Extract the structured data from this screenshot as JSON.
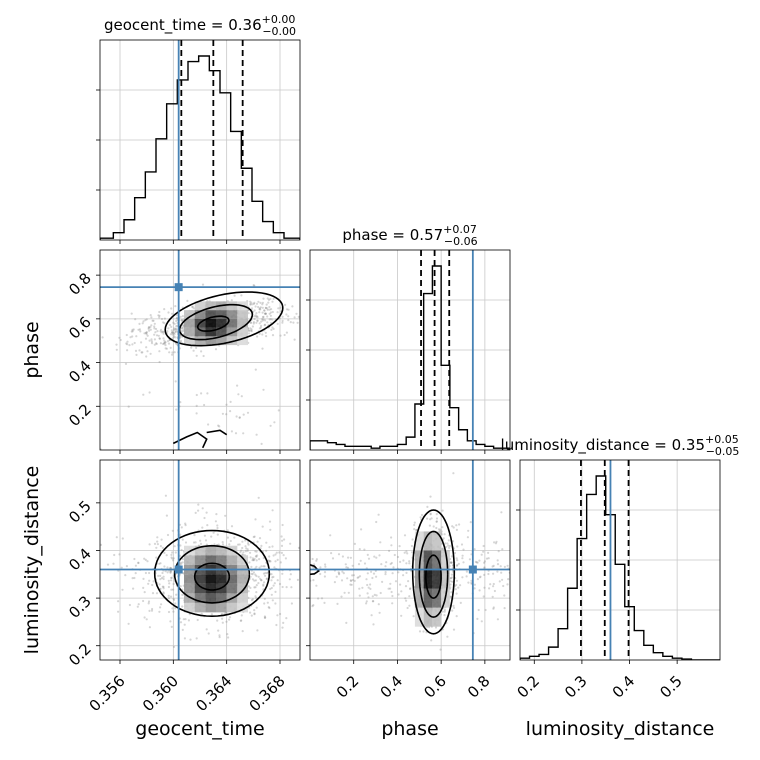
{
  "chart_data": {
    "type": "corner",
    "parameters": [
      "geocent_time",
      "phase",
      "luminosity_distance"
    ],
    "colors": {
      "truth": "#4682b4",
      "histogram": "#000000",
      "grid": "#c8c8c8",
      "scatter": "#8a8a8a",
      "density_dark": "#000000",
      "density_light": "#f2f2f2"
    },
    "truths": {
      "geocent_time": 0.3604,
      "phase": 0.745,
      "luminosity_distance": 0.36
    },
    "axes": {
      "geocent_time": {
        "label": "geocent_time",
        "range": [
          0.3545,
          0.3695
        ],
        "ticks": [
          0.356,
          0.36,
          0.364,
          0.368
        ],
        "tick_labels": [
          "0.356",
          "0.360",
          "0.364",
          "0.368"
        ]
      },
      "phase": {
        "label": "phase",
        "range": [
          0.0,
          0.915
        ],
        "ticks": [
          0.2,
          0.4,
          0.6,
          0.8
        ],
        "tick_labels": [
          "0.2",
          "0.4",
          "0.6",
          "0.8"
        ]
      },
      "luminosity_distance": {
        "label": "luminosity_distance",
        "range": [
          0.17,
          0.59
        ],
        "ticks": [
          0.2,
          0.3,
          0.4,
          0.5
        ],
        "tick_labels": [
          "0.2",
          "0.3",
          "0.4",
          "0.5"
        ]
      }
    },
    "marginals": [
      {
        "parameter": "geocent_time",
        "title_prefix": "geocent_time = 0.36",
        "title_sup": "+0.00",
        "title_sub": "−0.00",
        "quantiles": [
          0.3606,
          0.363,
          0.3652
        ],
        "bin_edges": [
          0.3545,
          0.3555,
          0.3563,
          0.3571,
          0.3579,
          0.3587,
          0.3595,
          0.3603,
          0.3611,
          0.3619,
          0.3627,
          0.3635,
          0.3643,
          0.3651,
          0.3659,
          0.3667,
          0.3675,
          0.3683,
          0.3695
        ],
        "counts": [
          0.01,
          0.04,
          0.11,
          0.23,
          0.37,
          0.55,
          0.74,
          0.87,
          0.97,
          1.0,
          0.92,
          0.8,
          0.59,
          0.39,
          0.21,
          0.1,
          0.04,
          0.01
        ]
      },
      {
        "parameter": "phase",
        "title_prefix": "phase = 0.57",
        "title_sup": "+0.07",
        "title_sub": "−0.06",
        "quantiles": [
          0.508,
          0.57,
          0.637
        ],
        "bin_edges": [
          0.0,
          0.04,
          0.08,
          0.12,
          0.16,
          0.2,
          0.24,
          0.28,
          0.32,
          0.36,
          0.4,
          0.44,
          0.48,
          0.52,
          0.56,
          0.6,
          0.64,
          0.68,
          0.72,
          0.76,
          0.8,
          0.84,
          0.88,
          0.915
        ],
        "counts": [
          0.05,
          0.05,
          0.04,
          0.03,
          0.02,
          0.02,
          0.02,
          0.01,
          0.02,
          0.02,
          0.03,
          0.07,
          0.25,
          0.85,
          1.0,
          0.46,
          0.23,
          0.11,
          0.05,
          0.03,
          0.02,
          0.01,
          0.01
        ]
      },
      {
        "parameter": "luminosity_distance",
        "title_prefix": "luminosity_distance = 0.35",
        "title_sup": "+0.05",
        "title_sub": "−0.05",
        "quantiles": [
          0.298,
          0.348,
          0.398
        ],
        "bin_edges": [
          0.17,
          0.19,
          0.21,
          0.23,
          0.25,
          0.27,
          0.29,
          0.31,
          0.33,
          0.35,
          0.37,
          0.39,
          0.41,
          0.43,
          0.45,
          0.47,
          0.49,
          0.51,
          0.53,
          0.55,
          0.57,
          0.59
        ],
        "counts": [
          0.01,
          0.02,
          0.03,
          0.07,
          0.17,
          0.39,
          0.66,
          0.9,
          1.0,
          0.79,
          0.52,
          0.29,
          0.16,
          0.08,
          0.04,
          0.02,
          0.01,
          0.005,
          0.0,
          0.0,
          0.0
        ]
      }
    ],
    "joints": [
      {
        "x": "geocent_time",
        "y": "phase",
        "mean": [
          0.3628,
          0.575
        ],
        "sd": [
          0.0028,
          0.055
        ],
        "rho": 0.45,
        "secondary": {
          "mean": [
            0.3636,
            0.16
          ],
          "sd": [
            0.0032,
            0.09
          ],
          "weight": 0.05
        },
        "grid_columns": [
          0.3612,
          0.362,
          0.3628,
          0.3636,
          0.3644,
          0.3652
        ],
        "grid_rows": [
          0.5,
          0.54,
          0.58,
          0.62,
          0.66
        ],
        "density_cells": [
          [
            0.15,
            0.3,
            0.4,
            0.35,
            0.2,
            0.1
          ],
          [
            0.3,
            0.6,
            0.85,
            0.7,
            0.4,
            0.15
          ],
          [
            0.35,
            0.75,
            1.0,
            0.85,
            0.55,
            0.25
          ],
          [
            0.2,
            0.45,
            0.7,
            0.65,
            0.45,
            0.2
          ],
          [
            0.05,
            0.15,
            0.25,
            0.3,
            0.2,
            0.1
          ]
        ],
        "contours": [
          {
            "kind": "ellipse",
            "center": [
              0.363,
              0.578
            ],
            "semi_axes": [
              0.0012,
              0.03
            ],
            "rotation": -0.25
          },
          {
            "kind": "ellipse",
            "center": [
              0.3632,
              0.585
            ],
            "semi_axes": [
              0.0028,
              0.07
            ],
            "rotation": -0.25
          },
          {
            "kind": "ellipse",
            "center": [
              0.3638,
              0.6
            ],
            "semi_axes": [
              0.0045,
              0.11
            ],
            "rotation": -0.22
          },
          {
            "kind": "polyline",
            "points": [
              [
                0.36,
                0.03
              ],
              [
                0.361,
                0.06
              ],
              [
                0.3618,
                0.08
              ],
              [
                0.3625,
                0.05
              ],
              [
                0.3622,
                0.01
              ]
            ]
          },
          {
            "kind": "polyline",
            "points": [
              [
                0.3625,
                0.08
              ],
              [
                0.3635,
                0.09
              ],
              [
                0.364,
                0.07
              ]
            ]
          }
        ]
      },
      {
        "x": "geocent_time",
        "y": "luminosity_distance",
        "mean": [
          0.363,
          0.348
        ],
        "sd": [
          0.0028,
          0.05
        ],
        "rho": 0.0,
        "grid_columns": [
          0.3612,
          0.362,
          0.3628,
          0.3636,
          0.3644,
          0.3652
        ],
        "grid_rows": [
          0.28,
          0.3,
          0.32,
          0.34,
          0.36,
          0.38,
          0.4
        ],
        "density_cells": [
          [
            0.15,
            0.3,
            0.4,
            0.35,
            0.2,
            0.1
          ],
          [
            0.3,
            0.55,
            0.7,
            0.6,
            0.35,
            0.15
          ],
          [
            0.4,
            0.75,
            0.9,
            0.8,
            0.55,
            0.25
          ],
          [
            0.45,
            0.8,
            1.0,
            0.9,
            0.6,
            0.3
          ],
          [
            0.4,
            0.7,
            0.85,
            0.75,
            0.5,
            0.25
          ],
          [
            0.25,
            0.45,
            0.6,
            0.5,
            0.3,
            0.15
          ],
          [
            0.1,
            0.2,
            0.3,
            0.25,
            0.15,
            0.05
          ]
        ],
        "contours": [
          {
            "kind": "ellipse",
            "center": [
              0.3629,
              0.345
            ],
            "semi_axes": [
              0.0013,
              0.028
            ],
            "rotation": 0
          },
          {
            "kind": "ellipse",
            "center": [
              0.3629,
              0.35
            ],
            "semi_axes": [
              0.0028,
              0.06
            ],
            "rotation": 0
          },
          {
            "kind": "ellipse",
            "center": [
              0.3629,
              0.352
            ],
            "semi_axes": [
              0.0043,
              0.09
            ],
            "rotation": 0
          }
        ]
      },
      {
        "x": "phase",
        "y": "luminosity_distance",
        "mean": [
          0.57,
          0.348
        ],
        "sd": [
          0.045,
          0.05
        ],
        "rho": 0.0,
        "background": {
          "sd_y": 0.04,
          "weight": 0.35
        },
        "grid_columns": [
          0.5,
          0.54,
          0.58,
          0.62
        ],
        "grid_rows": [
          0.26,
          0.3,
          0.34,
          0.38,
          0.42
        ],
        "density_cells": [
          [
            0.1,
            0.25,
            0.2,
            0.05
          ],
          [
            0.3,
            0.65,
            0.55,
            0.15
          ],
          [
            0.4,
            0.95,
            0.8,
            0.2
          ],
          [
            0.3,
            0.7,
            0.55,
            0.15
          ],
          [
            0.1,
            0.25,
            0.2,
            0.05
          ]
        ],
        "contours": [
          {
            "kind": "ellipse",
            "center": [
              0.565,
              0.345
            ],
            "semi_axes": [
              0.035,
              0.045
            ],
            "rotation": 0
          },
          {
            "kind": "ellipse",
            "center": [
              0.565,
              0.35
            ],
            "semi_axes": [
              0.065,
              0.09
            ],
            "rotation": 0
          },
          {
            "kind": "ellipse",
            "center": [
              0.565,
              0.355
            ],
            "semi_axes": [
              0.095,
              0.13
            ],
            "rotation": 0
          },
          {
            "kind": "polyline",
            "points": [
              [
                0.0,
                0.37
              ],
              [
                0.02,
                0.367
              ],
              [
                0.04,
                0.357
              ],
              [
                0.02,
                0.351
              ],
              [
                0.0,
                0.35
              ]
            ]
          }
        ]
      }
    ]
  }
}
